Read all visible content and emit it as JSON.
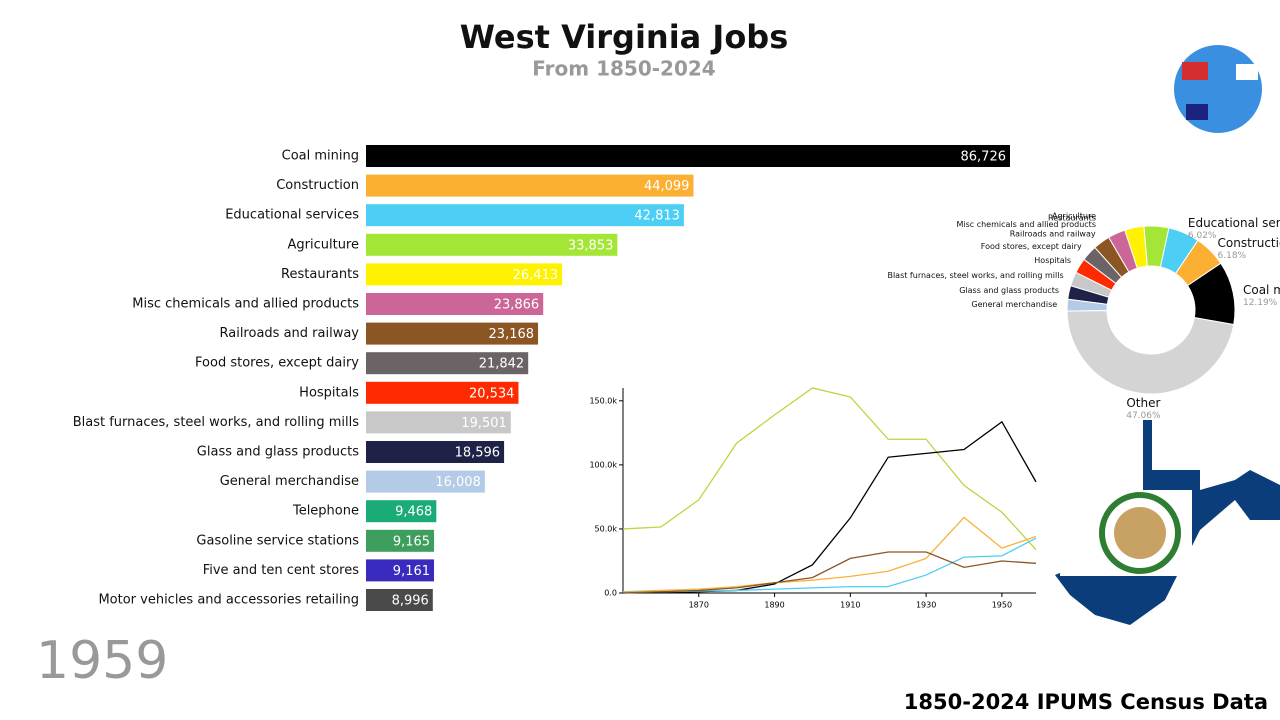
{
  "year": "1959",
  "source": "1850-2024 IPUMS Census Data",
  "chart_data": [
    {
      "type": "barh",
      "title": "West Virginia Jobs",
      "subtitle": "From 1850-2024",
      "categories": [
        "Coal mining",
        "Construction",
        "Educational services",
        "Agriculture",
        "Restaurants",
        "Misc chemicals and allied products",
        "Railroads and railway",
        "Food stores, except dairy",
        "Hospitals",
        "Blast furnaces, steel works, and rolling mills",
        "Glass and glass products",
        "General merchandise",
        "Telephone",
        "Gasoline service stations",
        "Five and ten cent stores",
        "Motor vehicles and accessories retailing"
      ],
      "values": [
        86726,
        44099,
        42813,
        33853,
        26413,
        23866,
        23168,
        21842,
        20534,
        19501,
        18596,
        16008,
        9468,
        9165,
        9161,
        8996
      ],
      "value_labels": [
        "86,726",
        "44,099",
        "42,813",
        "33,853",
        "26,413",
        "23,866",
        "23,168",
        "21,842",
        "20,534",
        "19,501",
        "18,596",
        "16,008",
        "9,468",
        "9,165",
        "9,161",
        "8,996"
      ],
      "colors": [
        "#000000",
        "#fbb034",
        "#4dcff5",
        "#a3e635",
        "#fff200",
        "#cc6699",
        "#8b5524",
        "#6b6365",
        "#ff2a00",
        "#c8c8c8",
        "#1e2247",
        "#b3cbe6",
        "#1aab77",
        "#3e9e5e",
        "#3a2bbf",
        "#4a4a4a"
      ]
    },
    {
      "type": "line",
      "x": [
        1850,
        1860,
        1870,
        1880,
        1890,
        1900,
        1910,
        1920,
        1930,
        1940,
        1950,
        1959
      ],
      "xlim": [
        1850,
        1959
      ],
      "xticks": [
        1870,
        1890,
        1910,
        1930,
        1950
      ],
      "ylim": [
        0,
        160000
      ],
      "yticks": [
        {
          "value": 0,
          "label": "0.0"
        },
        {
          "value": 50000,
          "label": "50.0k"
        },
        {
          "value": 100000,
          "label": "100.0k"
        },
        {
          "value": 150000,
          "label": "150.0k"
        }
      ],
      "series": [
        {
          "color": "#b5d93e",
          "values": [
            50000,
            51500,
            72700,
            117000,
            139000,
            160000,
            153000,
            120000,
            120000,
            84000,
            63000,
            33853
          ]
        },
        {
          "color": "#000000",
          "values": [
            0,
            500,
            1000,
            2000,
            7000,
            22000,
            58600,
            106000,
            109000,
            112000,
            133600,
            86726
          ]
        },
        {
          "color": "#f9b23b",
          "values": [
            1000,
            2000,
            3000,
            5000,
            8000,
            10000,
            13000,
            17000,
            27000,
            59000,
            35000,
            44099
          ]
        },
        {
          "color": "#4dcff5",
          "values": [
            500,
            1000,
            1500,
            2000,
            3000,
            4000,
            5000,
            5000,
            14000,
            28000,
            29000,
            42813
          ]
        },
        {
          "color": "#8b5524",
          "values": [
            0,
            1000,
            2000,
            4000,
            8000,
            12000,
            27000,
            32000,
            32000,
            20000,
            25000,
            23168
          ]
        }
      ]
    },
    {
      "type": "pie",
      "categories": [
        "Coal mining",
        "Construction",
        "Educational services",
        "Agriculture",
        "Restaurants",
        "Misc chemicals and allied products",
        "Railroads and railway",
        "Food stores, except dairy",
        "Hospitals",
        "Blast furnaces, steel works, and rolling mills",
        "Glass and glass products",
        "General merchandise",
        "Other"
      ],
      "values": [
        12.19,
        6.18,
        6.02,
        4.76,
        3.71,
        3.35,
        3.26,
        3.07,
        2.89,
        2.74,
        2.61,
        2.25,
        47.06
      ],
      "value_labels": [
        "12.19%",
        "6.18%",
        "6.02%",
        "4.76%",
        "3.71%",
        "3.35%",
        "3.26%",
        "3.07%",
        "2.89%",
        "2.74%",
        "2.61%",
        "2.25%",
        "47.06%"
      ],
      "colors": [
        "#000000",
        "#fbb034",
        "#4dcff5",
        "#a3e635",
        "#fff200",
        "#cc6699",
        "#8b5524",
        "#6b6365",
        "#ff2a00",
        "#c8c8c8",
        "#1e2247",
        "#b3cbe6",
        "#d4d4d4"
      ]
    }
  ]
}
